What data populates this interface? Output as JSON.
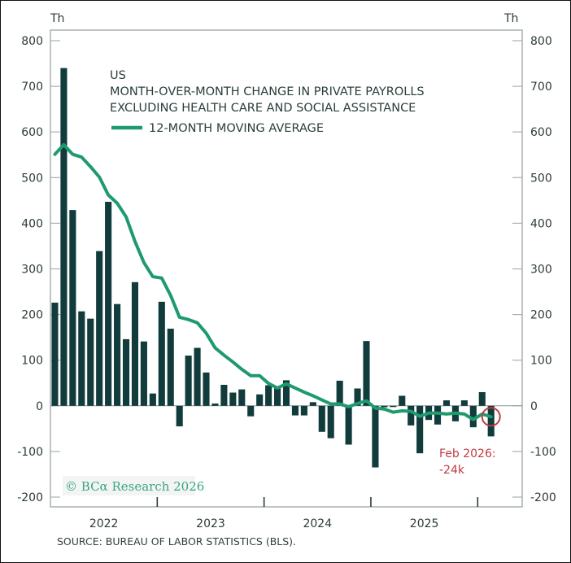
{
  "chart_data": {
    "type": "bar",
    "title_lines": [
      "US",
      "MONTH-OVER-MONTH CHANGE IN PRIVATE PAYROLLS",
      "EXCLUDING HEALTH CARE AND SOCIAL ASSISTANCE"
    ],
    "legend": [
      {
        "label": "12-MONTH MOVING AVERAGE",
        "type": "line",
        "color": "#1f9a6e"
      }
    ],
    "y_unit_left": "Th",
    "y_unit_right": "Th",
    "ylim": [
      -200,
      800
    ],
    "yticks": [
      800,
      700,
      600,
      500,
      400,
      300,
      200,
      100,
      0,
      -100,
      -200
    ],
    "x_year_labels": [
      "2022",
      "2023",
      "2024",
      "2025"
    ],
    "x_start": "2022-01",
    "months_per_year": 12,
    "x_months_span": 53,
    "series": [
      {
        "name": "Month-over-month change",
        "type": "bar",
        "color": "#123b3c",
        "values": [
          226,
          740,
          429,
          207,
          191,
          339,
          447,
          223,
          146,
          271,
          141,
          27,
          228,
          169,
          -45,
          110,
          127,
          73,
          5,
          46,
          29,
          36,
          -23,
          25,
          45,
          38,
          56,
          -21,
          -21,
          8,
          -57,
          -71,
          55,
          -85,
          38,
          142,
          -135,
          -3,
          -2,
          22,
          -43,
          -104,
          -31,
          -41,
          12,
          -34,
          12,
          -47,
          30,
          -67
        ]
      },
      {
        "name": "12-MONTH MOVING AVERAGE",
        "type": "line",
        "color": "#1f9a6e",
        "values": [
          551,
          572,
          551,
          545,
          524,
          501,
          462,
          444,
          414,
          360,
          314,
          283,
          280,
          242,
          194,
          189,
          182,
          159,
          127,
          111,
          96,
          80,
          66,
          66,
          49,
          39,
          48,
          39,
          30,
          22,
          13,
          4,
          4,
          -2,
          5,
          11,
          -5,
          -7,
          -14,
          -11,
          -12,
          -23,
          -16,
          -16,
          -18,
          -16,
          -18,
          -30,
          -18,
          -24
        ]
      }
    ],
    "annotation": {
      "text_line1": "Feb 2026:",
      "text_line2": "-24k",
      "month_index": 49,
      "value": -24,
      "color": "#c23a42"
    },
    "watermark": "© BCα Research 2026",
    "source": "SOURCE: BUREAU OF LABOR STATISTICS (BLS).",
    "grid": false
  }
}
